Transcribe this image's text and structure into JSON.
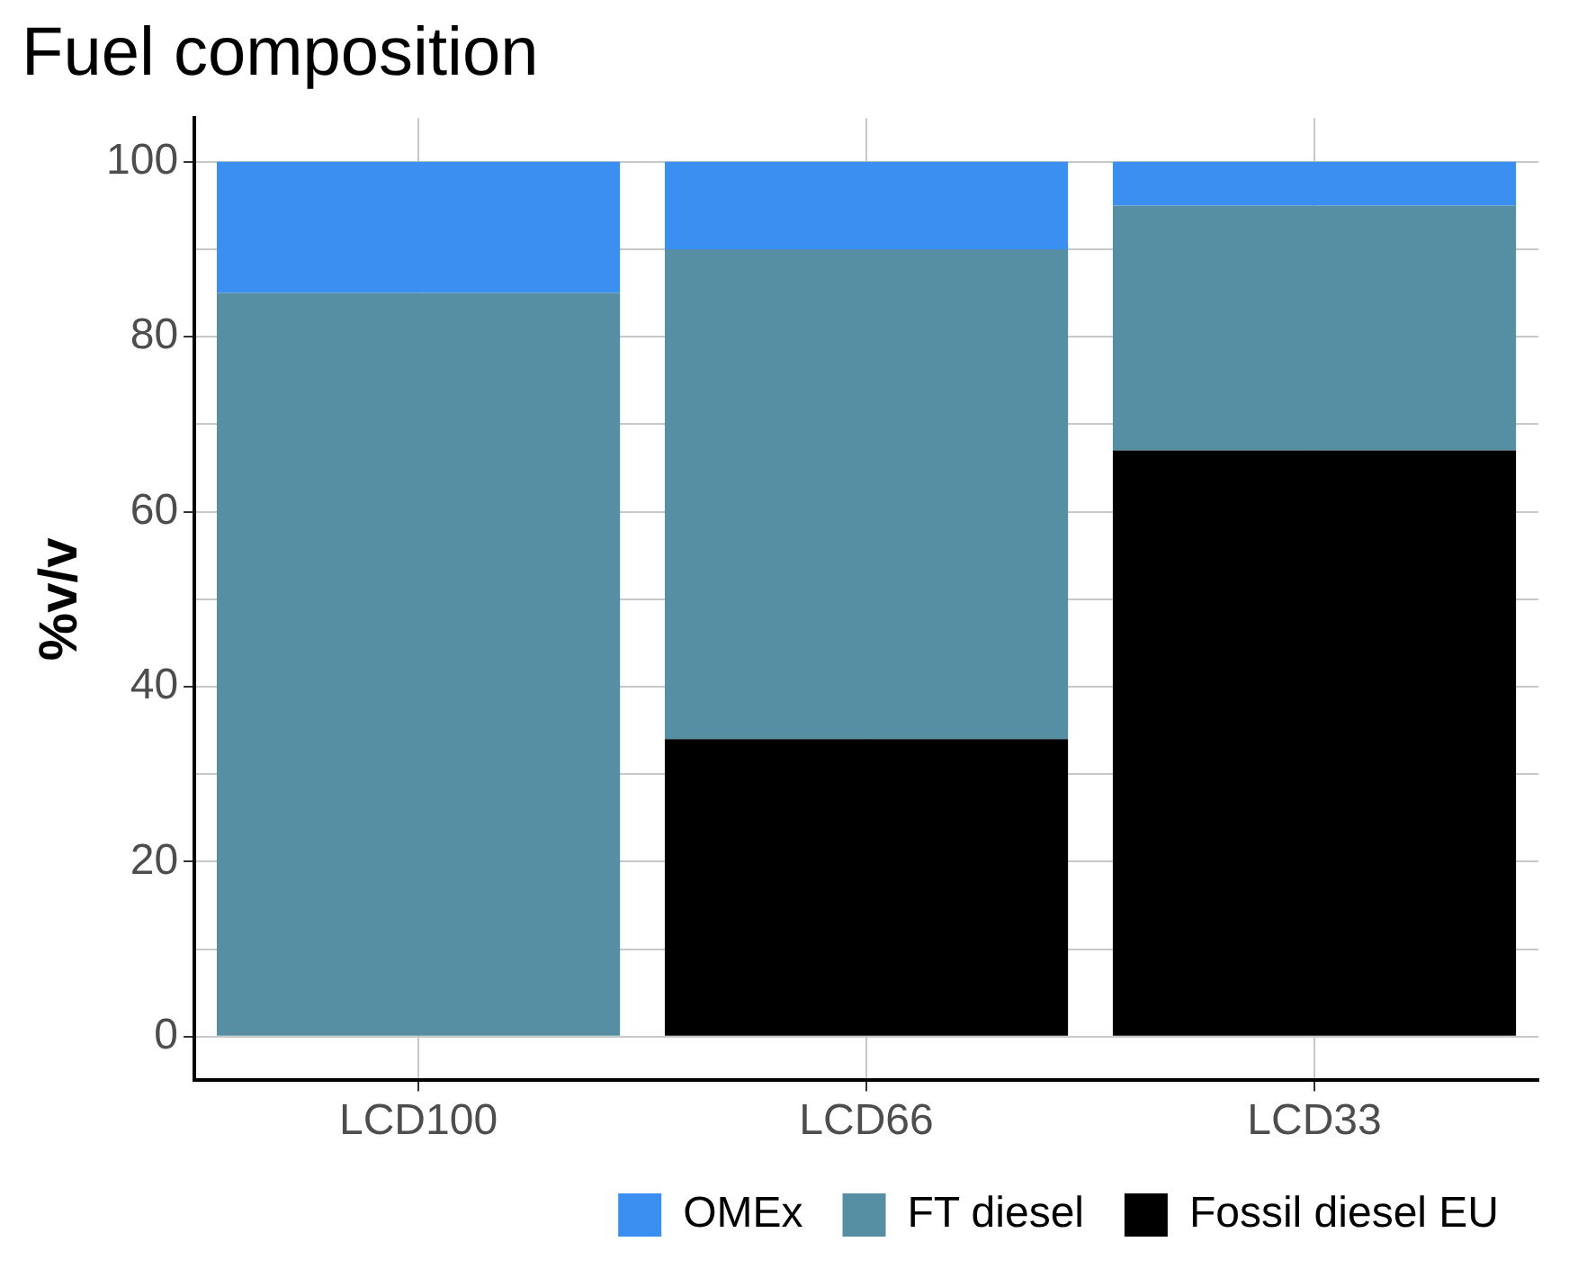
{
  "chart_data": {
    "type": "bar",
    "title": "Fuel composition",
    "ylabel": "%v/v",
    "categories": [
      "LCD100",
      "LCD66",
      "LCD33"
    ],
    "stacked": true,
    "series": [
      {
        "name": "Fossil diesel EU",
        "color": "#000000",
        "values": [
          0,
          34,
          67
        ]
      },
      {
        "name": "FT diesel",
        "color": "#568fa3",
        "values": [
          85,
          56,
          28
        ]
      },
      {
        "name": "OMEx",
        "color": "#3a8ff0",
        "values": [
          15,
          10,
          5
        ]
      }
    ],
    "ylim": [
      -5,
      105
    ],
    "yticks": [
      0,
      {
        "value": 10,
        "label": null
      },
      20,
      {
        "value": 30,
        "label": null
      },
      40,
      {
        "value": 50,
        "label": null
      },
      60,
      {
        "value": 70,
        "label": null
      },
      80,
      {
        "value": 90,
        "label": null
      },
      100
    ],
    "grid": true,
    "legend": "bottom right"
  }
}
